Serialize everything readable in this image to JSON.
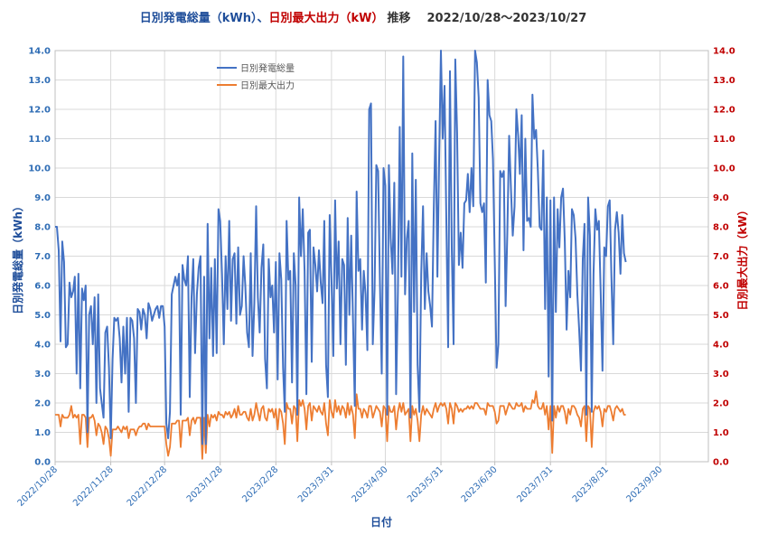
{
  "title": {
    "part1": "日別発電総量（kWh）、",
    "part2": "日別最大出力（kW）",
    "part3": "推移",
    "range": "2022/10/28～2023/10/27"
  },
  "colors": {
    "energy": "#4472c4",
    "power": "#ed7d31",
    "left_axis": "#2f6db5",
    "right_axis": "#c00000",
    "grid": "#d9d9d9"
  },
  "chart_data": {
    "type": "line",
    "title": "日別発電総量（kWh）、日別最大出力（kW） 推移 2022/10/28～2023/10/27",
    "xlabel": "日付",
    "ylabel_left": "日別発電総量（kWh）",
    "ylabel_right": "日別最大出力（kW）",
    "ylim": [
      0,
      14
    ],
    "yticks": [
      "0.0",
      "1.0",
      "2.0",
      "3.0",
      "4.0",
      "5.0",
      "6.0",
      "7.0",
      "8.0",
      "9.0",
      "10.0",
      "11.0",
      "12.0",
      "13.0",
      "14.0"
    ],
    "x_start": "2022/10/28",
    "x_end": "2023/10/27",
    "x_tick_labels": [
      "2022/10/28",
      "2022/11/28",
      "2022/12/28",
      "2023/1/28",
      "2023/2/28",
      "2023/3/31",
      "2023/4/30",
      "2023/5/31",
      "2023/6/30",
      "2023/7/31",
      "2023/8/31",
      "2023/9/30"
    ],
    "grid": true,
    "legend": "top-left",
    "series": [
      {
        "name": "日別発電総量",
        "axis": "left",
        "start": "2022/10/28",
        "step_days": 1,
        "values": [
          8.0,
          8.0,
          7.2,
          4.1,
          7.5,
          6.8,
          3.9,
          4.0,
          6.1,
          5.6,
          5.8,
          6.3,
          3.0,
          6.4,
          2.5,
          5.9,
          5.5,
          6.0,
          1.0,
          5.0,
          5.3,
          4.0,
          5.6,
          2.0,
          5.7,
          2.5,
          2.0,
          1.5,
          4.4,
          4.6,
          3.2,
          0.8,
          3.5,
          4.9,
          4.8,
          4.9,
          4.2,
          2.7,
          4.6,
          3.0,
          4.9,
          1.7,
          4.9,
          4.8,
          4.2,
          2.0,
          5.2,
          5.1,
          4.5,
          5.2,
          5.0,
          4.2,
          5.4,
          5.2,
          4.8,
          5.0,
          5.2,
          5.3,
          4.9,
          5.3,
          5.3,
          4.6,
          1.3,
          0.8,
          1.7,
          5.7,
          6.0,
          6.3,
          6.0,
          6.4,
          1.6,
          6.7,
          6.2,
          6.0,
          7.0,
          2.2,
          5.6,
          6.9,
          3.7,
          5.7,
          6.6,
          7.0,
          0.6,
          6.3,
          0.6,
          8.1,
          4.2,
          6.6,
          3.6,
          6.9,
          3.7,
          8.6,
          8.2,
          6.4,
          4.0,
          7.0,
          5.2,
          8.2,
          4.8,
          6.9,
          7.1,
          4.7,
          7.3,
          5.0,
          5.3,
          7.0,
          6.0,
          4.4,
          3.9,
          7.1,
          3.6,
          5.4,
          8.7,
          5.6,
          4.4,
          6.6,
          7.4,
          3.5,
          2.5,
          6.9,
          5.6,
          6.0,
          4.4,
          6.8,
          2.8,
          7.1,
          6.2,
          3.2,
          1.7,
          8.2,
          6.2,
          6.5,
          2.7,
          7.1,
          6.0,
          1.6,
          9.0,
          7.0,
          8.6,
          6.5,
          2.3,
          7.8,
          7.9,
          3.4,
          7.3,
          6.7,
          5.8,
          7.2,
          6.1,
          5.4,
          8.2,
          3.3,
          2.2,
          8.4,
          6.2,
          3.6,
          8.9,
          5.9,
          7.5,
          4.0,
          6.9,
          6.7,
          3.3,
          8.3,
          5.0,
          7.7,
          4.8,
          1.9,
          9.2,
          6.5,
          6.9,
          4.5,
          6.5,
          5.7,
          3.8,
          12.0,
          12.2,
          4.0,
          5.9,
          10.1,
          9.9,
          6.1,
          3.0,
          10.0,
          9.4,
          1.6,
          10.1,
          7.6,
          6.4,
          9.5,
          2.3,
          5.8,
          11.4,
          6.3,
          13.8,
          5.7,
          7.6,
          8.2,
          1.5,
          10.5,
          5.1,
          9.6,
          3.3,
          1.7,
          6.4,
          8.7,
          5.2,
          7.1,
          5.8,
          5.3,
          4.6,
          8.6,
          11.6,
          6.3,
          10.5,
          14.0,
          11.0,
          12.8,
          8.2,
          3.9,
          13.3,
          7.3,
          4.0,
          13.7,
          11.2,
          6.7,
          7.8,
          6.6,
          8.8,
          8.9,
          9.8,
          8.5,
          10.0,
          8.7,
          14.0,
          13.6,
          12.4,
          8.8,
          8.5,
          8.8,
          6.1,
          13.0,
          11.8,
          11.6,
          10.3,
          6.8,
          3.2,
          4.0,
          9.9,
          9.7,
          9.9,
          5.3,
          7.8,
          11.1,
          9.3,
          7.7,
          8.7,
          12.0,
          11.1,
          9.8,
          11.8,
          7.2,
          11.0,
          8.2,
          8.3,
          8.0,
          12.5,
          11.0,
          11.3,
          9.9,
          8.0,
          7.9,
          10.6,
          5.2,
          9.0,
          2.9,
          8.9,
          1.4,
          9.0,
          5.1,
          8.6,
          7.3,
          9.0,
          9.3,
          7.5,
          4.5,
          6.5,
          5.6,
          8.6,
          8.4,
          7.6,
          5.7,
          4.5,
          3.1,
          6.9,
          8.1,
          1.6,
          9.0,
          7.7,
          1.7,
          6.4,
          8.6,
          7.9,
          8.2,
          5.8,
          3.1,
          7.3,
          7.0,
          8.7,
          8.9,
          6.3,
          4.0,
          7.9,
          8.5,
          7.8,
          6.4,
          8.4,
          7.1,
          6.8
        ]
      },
      {
        "name": "日別最大出力",
        "axis": "right",
        "start": "2022/10/28",
        "step_days": 1,
        "values": [
          1.6,
          1.6,
          1.6,
          1.2,
          1.6,
          1.5,
          1.5,
          1.5,
          1.6,
          1.9,
          1.5,
          1.6,
          1.5,
          1.6,
          0.6,
          1.6,
          1.6,
          1.5,
          0.5,
          1.5,
          1.5,
          1.6,
          1.4,
          0.9,
          1.3,
          1.2,
          1.0,
          0.6,
          1.2,
          1.1,
          0.8,
          0.2,
          1.1,
          1.1,
          1.1,
          1.2,
          1.1,
          1.0,
          1.2,
          1.1,
          1.2,
          0.8,
          1.1,
          1.1,
          1.1,
          0.9,
          1.1,
          1.2,
          1.2,
          1.3,
          1.3,
          1.1,
          1.3,
          1.2,
          1.2,
          1.2,
          1.2,
          1.2,
          1.2,
          1.2,
          1.2,
          1.2,
          0.6,
          0.2,
          0.5,
          1.3,
          1.3,
          1.3,
          1.4,
          1.4,
          0.5,
          1.4,
          1.4,
          1.4,
          1.5,
          0.9,
          1.4,
          1.5,
          1.3,
          1.5,
          1.5,
          1.5,
          0.1,
          1.5,
          0.3,
          1.6,
          1.2,
          1.6,
          1.5,
          1.6,
          1.4,
          1.7,
          1.6,
          1.6,
          1.5,
          1.7,
          1.6,
          1.7,
          1.5,
          1.6,
          1.8,
          1.5,
          1.9,
          1.6,
          1.6,
          1.7,
          1.7,
          1.5,
          1.4,
          1.8,
          1.4,
          1.6,
          2.0,
          1.7,
          1.4,
          1.8,
          1.9,
          1.5,
          1.4,
          1.8,
          1.7,
          1.8,
          1.5,
          1.8,
          1.1,
          1.8,
          1.7,
          1.3,
          0.6,
          2.0,
          1.8,
          1.8,
          1.3,
          1.9,
          1.8,
          0.7,
          2.1,
          1.9,
          2.1,
          1.8,
          1.1,
          1.9,
          2.0,
          1.4,
          1.9,
          1.8,
          1.7,
          1.9,
          1.7,
          1.6,
          2.0,
          1.3,
          0.9,
          2.1,
          1.7,
          1.5,
          2.1,
          1.7,
          1.9,
          1.6,
          1.9,
          1.8,
          1.5,
          2.0,
          1.6,
          1.9,
          1.6,
          0.8,
          2.3,
          1.8,
          1.8,
          1.5,
          1.8,
          1.7,
          1.5,
          1.9,
          1.9,
          1.5,
          1.7,
          1.9,
          1.8,
          1.7,
          1.2,
          1.9,
          1.8,
          0.7,
          1.9,
          1.7,
          1.7,
          1.9,
          1.1,
          1.7,
          2.0,
          1.7,
          2.0,
          1.6,
          1.7,
          1.8,
          0.7,
          1.9,
          1.6,
          1.8,
          1.4,
          0.7,
          1.6,
          1.9,
          1.6,
          1.8,
          1.7,
          1.6,
          1.5,
          1.8,
          2.0,
          1.7,
          1.9,
          2.0,
          1.9,
          2.0,
          1.8,
          1.3,
          2.0,
          1.8,
          1.3,
          2.0,
          1.9,
          1.7,
          1.8,
          1.7,
          1.8,
          1.8,
          1.9,
          1.8,
          1.9,
          1.8,
          2.0,
          2.0,
          1.9,
          1.8,
          1.8,
          1.8,
          1.6,
          2.0,
          1.9,
          1.9,
          1.9,
          1.7,
          1.3,
          1.4,
          1.9,
          1.9,
          1.9,
          1.6,
          1.8,
          2.0,
          1.9,
          1.8,
          1.8,
          2.0,
          1.9,
          1.9,
          2.0,
          1.7,
          1.9,
          1.8,
          1.8,
          1.8,
          2.1,
          2.0,
          2.4,
          1.9,
          1.8,
          1.8,
          2.0,
          1.6,
          1.9,
          1.1,
          1.9,
          0.3,
          1.9,
          1.5,
          1.9,
          1.7,
          1.9,
          1.9,
          1.7,
          1.3,
          1.8,
          1.6,
          1.9,
          1.9,
          1.8,
          1.6,
          1.5,
          1.2,
          1.8,
          1.9,
          0.7,
          1.9,
          1.8,
          0.5,
          1.7,
          1.9,
          1.8,
          1.9,
          1.7,
          1.2,
          1.8,
          1.7,
          1.9,
          1.9,
          1.7,
          1.4,
          1.8,
          1.9,
          1.8,
          1.7,
          1.8,
          1.6,
          1.6
        ]
      }
    ]
  }
}
